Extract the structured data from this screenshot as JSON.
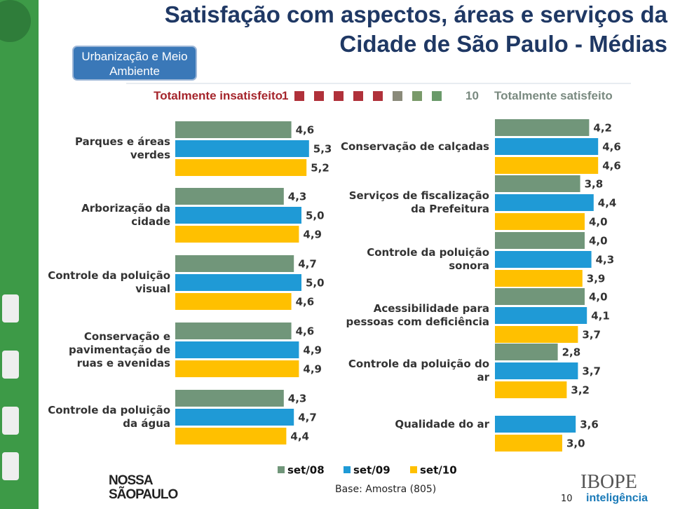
{
  "header": {
    "title": [
      "Satisfação com aspectos, áreas e serviços da",
      "Cidade de São Paulo - Médias"
    ],
    "badge": "Urbanização e Meio Ambiente"
  },
  "scale": {
    "low_label": "Totalmente insatisfeito",
    "min": 1,
    "max": 10,
    "high_label": "Totalmente satisfeito"
  },
  "chart_data": [
    {
      "type": "bar",
      "orientation": "horizontal",
      "xlim": [
        0,
        10
      ],
      "categories": [
        "Parques e áreas verdes",
        "Arborização da cidade",
        "Controle da poluição visual",
        "Conservação e pavimentação de ruas e avenidas",
        "Controle da poluição da água"
      ],
      "series": [
        {
          "name": "set/08",
          "color": "#71967a",
          "values": [
            4.6,
            4.3,
            4.7,
            4.6,
            4.3
          ],
          "value_labels": [
            "4,6",
            "4,3",
            "4,7",
            "4,6",
            "4,3"
          ]
        },
        {
          "name": "set/09",
          "color": "#1f9ad6",
          "values": [
            5.3,
            5.0,
            5.0,
            4.9,
            4.7
          ],
          "value_labels": [
            "5,3",
            "5,0",
            "5,0",
            "4,9",
            "4,7"
          ]
        },
        {
          "name": "set/10",
          "color": "#ffc000",
          "values": [
            5.2,
            4.9,
            4.6,
            4.9,
            4.4
          ],
          "value_labels": [
            "5,2",
            "4,9",
            "4,6",
            "4,9",
            "4,4"
          ]
        }
      ]
    },
    {
      "type": "bar",
      "orientation": "horizontal",
      "xlim": [
        0,
        10
      ],
      "categories": [
        "Conservação de calçadas",
        "Serviços de fiscalização da Prefeitura",
        "Controle da poluição sonora",
        "Acessibilidade para pessoas com deficiência",
        "Controle da poluição do ar",
        "Qualidade do ar"
      ],
      "series": [
        {
          "color": "#71967a",
          "values": [
            4.2,
            3.8,
            4.0,
            4.0,
            2.8,
            null
          ],
          "value_labels": [
            "4,2",
            "3,8",
            "4,0",
            "4,0",
            "2,8",
            null
          ]
        },
        {
          "color": "#1f9ad6",
          "values": [
            4.6,
            4.4,
            4.3,
            4.1,
            3.7,
            3.6
          ],
          "value_labels": [
            "4,6",
            "4,4",
            "4,3",
            "4,1",
            "3,7",
            "3,6"
          ]
        },
        {
          "color": "#ffc000",
          "values": [
            4.6,
            4.0,
            3.9,
            3.7,
            3.2,
            3.0
          ],
          "value_labels": [
            "4,6",
            "4,0",
            "3,9",
            "3,7",
            "3,2",
            "3,0"
          ]
        }
      ]
    }
  ],
  "footer": {
    "base": "Base: Amostra (805)",
    "page": "10",
    "logo_left": "NOSSA SÃOPAULO",
    "logo_right_top": "IBOPE",
    "logo_right_bottom": "inteligência"
  }
}
